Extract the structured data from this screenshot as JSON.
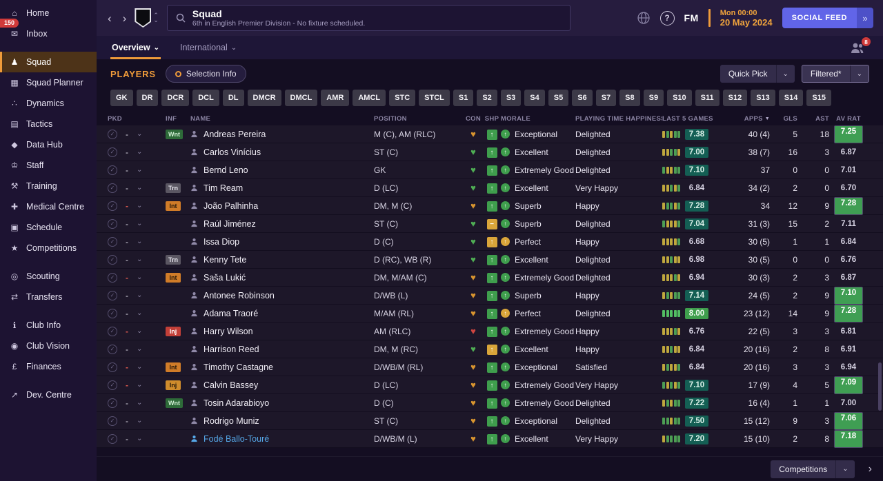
{
  "sidebar": {
    "items": [
      {
        "id": "home",
        "label": "Home",
        "icon": "home-icon",
        "glyph": "⌂"
      },
      {
        "id": "inbox",
        "label": "Inbox",
        "icon": "inbox-icon",
        "glyph": "✉",
        "badge": "150"
      },
      {
        "id": "squad",
        "label": "Squad",
        "icon": "squad-icon",
        "glyph": "♟",
        "active": true,
        "gap": true
      },
      {
        "id": "squad-planner",
        "label": "Squad Planner",
        "icon": "squad-planner-icon",
        "glyph": "▦"
      },
      {
        "id": "dynamics",
        "label": "Dynamics",
        "icon": "dynamics-icon",
        "glyph": "∴"
      },
      {
        "id": "tactics",
        "label": "Tactics",
        "icon": "tactics-icon",
        "glyph": "▤"
      },
      {
        "id": "data-hub",
        "label": "Data Hub",
        "icon": "data-hub-icon",
        "glyph": "◆"
      },
      {
        "id": "staff",
        "label": "Staff",
        "icon": "staff-icon",
        "glyph": "♔"
      },
      {
        "id": "training",
        "label": "Training",
        "icon": "training-icon",
        "glyph": "⚒"
      },
      {
        "id": "medical-centre",
        "label": "Medical Centre",
        "icon": "medical-centre-icon",
        "glyph": "✚"
      },
      {
        "id": "schedule",
        "label": "Schedule",
        "icon": "schedule-icon",
        "glyph": "▣"
      },
      {
        "id": "competitions",
        "label": "Competitions",
        "icon": "competitions-icon",
        "glyph": "★"
      },
      {
        "id": "scouting",
        "label": "Scouting",
        "icon": "scouting-icon",
        "glyph": "◎",
        "gap": true
      },
      {
        "id": "transfers",
        "label": "Transfers",
        "icon": "transfers-icon",
        "glyph": "⇄"
      },
      {
        "id": "club-info",
        "label": "Club Info",
        "icon": "club-info-icon",
        "glyph": "ℹ",
        "gap": true
      },
      {
        "id": "club-vision",
        "label": "Club Vision",
        "icon": "club-vision-icon",
        "glyph": "◉"
      },
      {
        "id": "finances",
        "label": "Finances",
        "icon": "finances-icon",
        "glyph": "£"
      },
      {
        "id": "dev-centre",
        "label": "Dev. Centre",
        "icon": "dev-centre-icon",
        "glyph": "↗",
        "gap": true
      }
    ]
  },
  "header": {
    "title": "Squad",
    "subtitle": "6th in English Premier Division - No fixture scheduled.",
    "help_label": "?",
    "fm_label": "FM",
    "date_line1": "Mon 00:00",
    "date_line2": "20 May 2024",
    "social_feed": "SOCIAL FEED"
  },
  "tabs": [
    {
      "label": "Overview",
      "active": true
    },
    {
      "label": "International",
      "active": false
    }
  ],
  "people_badge": "8",
  "players": {
    "section_title": "PLAYERS",
    "selection_info_label": "Selection Info",
    "quick_pick_label": "Quick Pick",
    "filtered_label": "Filtered*",
    "position_filters": [
      "GK",
      "DR",
      "DCR",
      "DCL",
      "DL",
      "DMCR",
      "DMCL",
      "AMR",
      "AMCL",
      "STC",
      "STCL",
      "S1",
      "S2",
      "S3",
      "S4",
      "S5",
      "S6",
      "S7",
      "S8",
      "S9",
      "S10",
      "S11",
      "S12",
      "S13",
      "S14",
      "S15"
    ],
    "columns": [
      "PKD",
      "INF",
      "NAME",
      "POSITION",
      "CON",
      "SHP",
      "MORALE",
      "PLAYING TIME HAPPINESS",
      "LAST 5 GAMES",
      "APPS",
      "GLS",
      "AST",
      "AV RAT"
    ],
    "sorted_column": "APPS",
    "rows": [
      {
        "pkd": "-",
        "unavailable": false,
        "inf": {
          "label": "Wnt",
          "type": "wnt"
        },
        "name": "Andreas Pereira",
        "listed": false,
        "position": "M (C), AM (RLC)",
        "condition": "orange",
        "sharpness": {
          "color": "green",
          "glyph": "up"
        },
        "morale": "Exceptional",
        "morale_color": "green",
        "playing_time": "Delighted",
        "form": [
          "y",
          "g",
          "y",
          "g",
          "g"
        ],
        "last5": "7.38",
        "last5_style": "teal",
        "apps": "40 (4)",
        "goals": "5",
        "assists": "18",
        "av_rating": "7.25",
        "av_rating_style": "pill"
      },
      {
        "pkd": "-",
        "unavailable": false,
        "inf": null,
        "name": "Carlos Vinícius",
        "listed": false,
        "position": "ST (C)",
        "condition": "green",
        "sharpness": {
          "color": "green",
          "glyph": "up"
        },
        "morale": "Excellent",
        "morale_color": "green",
        "playing_time": "Delighted",
        "form": [
          "y",
          "y",
          "g",
          "g",
          "y"
        ],
        "last5": "7.00",
        "last5_style": "teal",
        "apps": "38 (7)",
        "goals": "16",
        "assists": "3",
        "av_rating": "6.87",
        "av_rating_style": "plain"
      },
      {
        "pkd": "-",
        "unavailable": false,
        "inf": null,
        "name": "Bernd Leno",
        "listed": false,
        "position": "GK",
        "condition": "green",
        "sharpness": {
          "color": "green",
          "glyph": "up"
        },
        "morale": "Extremely Good",
        "morale_color": "green",
        "playing_time": "Delighted",
        "form": [
          "g",
          "y",
          "y",
          "g",
          "g"
        ],
        "last5": "7.10",
        "last5_style": "teal",
        "apps": "37",
        "goals": "0",
        "assists": "0",
        "av_rating": "7.01",
        "av_rating_style": "plain"
      },
      {
        "pkd": "-",
        "unavailable": false,
        "inf": {
          "label": "Trn",
          "type": "trn"
        },
        "name": "Tim Ream",
        "listed": false,
        "position": "D (LC)",
        "condition": "green",
        "sharpness": {
          "color": "green",
          "glyph": "up"
        },
        "morale": "Excellent",
        "morale_color": "green",
        "playing_time": "Very Happy",
        "form": [
          "y",
          "y",
          "g",
          "y",
          "g"
        ],
        "last5": "6.84",
        "last5_style": "plain",
        "apps": "34 (2)",
        "goals": "2",
        "assists": "0",
        "av_rating": "6.70",
        "av_rating_style": "plain"
      },
      {
        "pkd": "-",
        "unavailable": true,
        "inf": {
          "label": "Int",
          "type": "int"
        },
        "name": "João Palhinha",
        "listed": false,
        "position": "DM, M (C)",
        "condition": "orange",
        "sharpness": {
          "color": "green",
          "glyph": "up"
        },
        "morale": "Superb",
        "morale_color": "green",
        "playing_time": "Happy",
        "form": [
          "y",
          "g",
          "g",
          "y",
          "g"
        ],
        "last5": "7.28",
        "last5_style": "teal",
        "apps": "34",
        "goals": "12",
        "assists": "9",
        "av_rating": "7.28",
        "av_rating_style": "pill"
      },
      {
        "pkd": "-",
        "unavailable": false,
        "inf": null,
        "name": "Raúl Jiménez",
        "listed": false,
        "position": "ST (C)",
        "condition": "green",
        "sharpness": {
          "color": "amber",
          "glyph": "eq"
        },
        "morale": "Superb",
        "morale_color": "green",
        "playing_time": "Delighted",
        "form": [
          "g",
          "y",
          "y",
          "y",
          "g"
        ],
        "last5": "7.04",
        "last5_style": "teal",
        "apps": "31 (3)",
        "goals": "15",
        "assists": "2",
        "av_rating": "7.11",
        "av_rating_style": "plain"
      },
      {
        "pkd": "-",
        "unavailable": false,
        "inf": null,
        "name": "Issa Diop",
        "listed": false,
        "position": "D (C)",
        "condition": "green",
        "sharpness": {
          "color": "amber",
          "glyph": "up"
        },
        "morale": "Perfect",
        "morale_color": "amber",
        "playing_time": "Happy",
        "form": [
          "y",
          "y",
          "y",
          "y",
          "g"
        ],
        "last5": "6.68",
        "last5_style": "plain",
        "apps": "30 (5)",
        "goals": "1",
        "assists": "1",
        "av_rating": "6.84",
        "av_rating_style": "plain"
      },
      {
        "pkd": "-",
        "unavailable": false,
        "inf": {
          "label": "Trn",
          "type": "trn"
        },
        "name": "Kenny Tete",
        "listed": false,
        "position": "D (RC), WB (R)",
        "condition": "green",
        "sharpness": {
          "color": "green",
          "glyph": "up"
        },
        "morale": "Excellent",
        "morale_color": "green",
        "playing_time": "Delighted",
        "form": [
          "y",
          "y",
          "g",
          "y",
          "y"
        ],
        "last5": "6.98",
        "last5_style": "plain",
        "apps": "30 (5)",
        "goals": "0",
        "assists": "0",
        "av_rating": "6.76",
        "av_rating_style": "plain"
      },
      {
        "pkd": "-",
        "unavailable": true,
        "inf": {
          "label": "Int",
          "type": "int"
        },
        "name": "Saša Lukić",
        "listed": false,
        "position": "DM, M/AM (C)",
        "condition": "orange",
        "sharpness": {
          "color": "green",
          "glyph": "up"
        },
        "morale": "Extremely Good",
        "morale_color": "green",
        "playing_time": "Delighted",
        "form": [
          "y",
          "y",
          "y",
          "g",
          "y"
        ],
        "last5": "6.94",
        "last5_style": "plain",
        "apps": "30 (3)",
        "goals": "2",
        "assists": "3",
        "av_rating": "6.87",
        "av_rating_style": "plain"
      },
      {
        "pkd": "-",
        "unavailable": false,
        "inf": null,
        "name": "Antonee Robinson",
        "listed": false,
        "position": "D/WB (L)",
        "condition": "orange",
        "sharpness": {
          "color": "green",
          "glyph": "up"
        },
        "morale": "Superb",
        "morale_color": "green",
        "playing_time": "Happy",
        "form": [
          "y",
          "g",
          "y",
          "g",
          "g"
        ],
        "last5": "7.14",
        "last5_style": "teal",
        "apps": "24 (5)",
        "goals": "2",
        "assists": "9",
        "av_rating": "7.10",
        "av_rating_style": "pill"
      },
      {
        "pkd": "-",
        "unavailable": false,
        "inf": null,
        "name": "Adama Traoré",
        "listed": false,
        "position": "M/AM (RL)",
        "condition": "orange",
        "sharpness": {
          "color": "green",
          "glyph": "up"
        },
        "morale": "Perfect",
        "morale_color": "amber",
        "playing_time": "Delighted",
        "form": [
          "G",
          "G",
          "G",
          "G",
          "G"
        ],
        "last5": "8.00",
        "last5_style": "bright",
        "apps": "23 (12)",
        "goals": "14",
        "assists": "9",
        "av_rating": "7.28",
        "av_rating_style": "pill"
      },
      {
        "pkd": "-",
        "unavailable": true,
        "inf": {
          "label": "Inj",
          "type": "inj"
        },
        "name": "Harry Wilson",
        "listed": false,
        "position": "AM (RLC)",
        "condition": "red",
        "sharpness": {
          "color": "green",
          "glyph": "up"
        },
        "morale": "Extremely Good",
        "morale_color": "green",
        "playing_time": "Happy",
        "form": [
          "y",
          "y",
          "y",
          "g",
          "y"
        ],
        "last5": "6.76",
        "last5_style": "plain",
        "apps": "22 (5)",
        "goals": "3",
        "assists": "3",
        "av_rating": "6.81",
        "av_rating_style": "plain"
      },
      {
        "pkd": "-",
        "unavailable": false,
        "inf": null,
        "name": "Harrison Reed",
        "listed": false,
        "position": "DM, M (RC)",
        "condition": "green",
        "sharpness": {
          "color": "amber",
          "glyph": "up"
        },
        "morale": "Excellent",
        "morale_color": "green",
        "playing_time": "Happy",
        "form": [
          "y",
          "y",
          "g",
          "y",
          "y"
        ],
        "last5": "6.84",
        "last5_style": "plain",
        "apps": "20 (16)",
        "goals": "2",
        "assists": "8",
        "av_rating": "6.91",
        "av_rating_style": "plain"
      },
      {
        "pkd": "-",
        "unavailable": true,
        "inf": {
          "label": "Int",
          "type": "int"
        },
        "name": "Timothy Castagne",
        "listed": false,
        "position": "D/WB/M (RL)",
        "condition": "orange",
        "sharpness": {
          "color": "green",
          "glyph": "up"
        },
        "morale": "Exceptional",
        "morale_color": "green",
        "playing_time": "Satisfied",
        "form": [
          "y",
          "g",
          "y",
          "y",
          "g"
        ],
        "last5": "6.84",
        "last5_style": "plain",
        "apps": "20 (16)",
        "goals": "3",
        "assists": "3",
        "av_rating": "6.94",
        "av_rating_style": "plain"
      },
      {
        "pkd": "-",
        "unavailable": true,
        "inf": {
          "label": "Inj",
          "type": "injs"
        },
        "name": "Calvin Bassey",
        "listed": false,
        "position": "D (LC)",
        "condition": "orange",
        "sharpness": {
          "color": "green",
          "glyph": "up"
        },
        "morale": "Extremely Good",
        "morale_color": "green",
        "playing_time": "Very Happy",
        "form": [
          "g",
          "y",
          "g",
          "y",
          "g"
        ],
        "last5": "7.10",
        "last5_style": "teal",
        "apps": "17 (9)",
        "goals": "4",
        "assists": "5",
        "av_rating": "7.09",
        "av_rating_style": "pill"
      },
      {
        "pkd": "-",
        "unavailable": false,
        "inf": {
          "label": "Wnt",
          "type": "wnt"
        },
        "name": "Tosin Adarabioyo",
        "listed": false,
        "position": "D (C)",
        "condition": "orange",
        "sharpness": {
          "color": "green",
          "glyph": "up"
        },
        "morale": "Extremely Good",
        "morale_color": "green",
        "playing_time": "Delighted",
        "form": [
          "y",
          "g",
          "y",
          "g",
          "g"
        ],
        "last5": "7.22",
        "last5_style": "teal",
        "apps": "16 (4)",
        "goals": "1",
        "assists": "1",
        "av_rating": "7.00",
        "av_rating_style": "plain"
      },
      {
        "pkd": "-",
        "unavailable": false,
        "inf": null,
        "name": "Rodrigo Muniz",
        "listed": false,
        "position": "ST (C)",
        "condition": "orange",
        "sharpness": {
          "color": "green",
          "glyph": "up"
        },
        "morale": "Exceptional",
        "morale_color": "green",
        "playing_time": "Delighted",
        "form": [
          "g",
          "g",
          "y",
          "g",
          "g"
        ],
        "last5": "7.50",
        "last5_style": "teal",
        "apps": "15 (12)",
        "goals": "9",
        "assists": "3",
        "av_rating": "7.06",
        "av_rating_style": "pill"
      },
      {
        "pkd": "-",
        "unavailable": false,
        "inf": null,
        "name": "Fodé Ballo-Touré",
        "listed": true,
        "position": "D/WB/M (L)",
        "condition": "orange",
        "sharpness": {
          "color": "green",
          "glyph": "up"
        },
        "morale": "Excellent",
        "morale_color": "green",
        "playing_time": "Very Happy",
        "form": [
          "y",
          "g",
          "g",
          "g",
          "g"
        ],
        "last5": "7.20",
        "last5_style": "teal",
        "apps": "15 (10)",
        "goals": "2",
        "assists": "8",
        "av_rating": "7.18",
        "av_rating_style": "pill"
      }
    ]
  },
  "footer": {
    "competitions_label": "Competitions"
  },
  "icons": {
    "back": "‹",
    "forward": "›",
    "caret_up": "⌃",
    "caret_down": "⌄",
    "chevron_down": "⌄",
    "chevron_right_big": "›",
    "sort_desc": "▼",
    "check": "✓",
    "heart": "♥",
    "arrow_up": "↑",
    "equals": "−",
    "social_more": "»"
  },
  "colors": {
    "accent_orange": "#ef9b3a",
    "condition": {
      "orange": "#d9952f",
      "green": "#4fae54",
      "red": "#d04540"
    },
    "sharpness": {
      "green": "#3f9e4d",
      "amber": "#d9a53a"
    },
    "morale": {
      "green": "#3f9e4d",
      "amber": "#d9a53a"
    },
    "rating_teal": "#145f54",
    "rating_green": "#3f9e53",
    "social_purple": "#6165e8"
  }
}
